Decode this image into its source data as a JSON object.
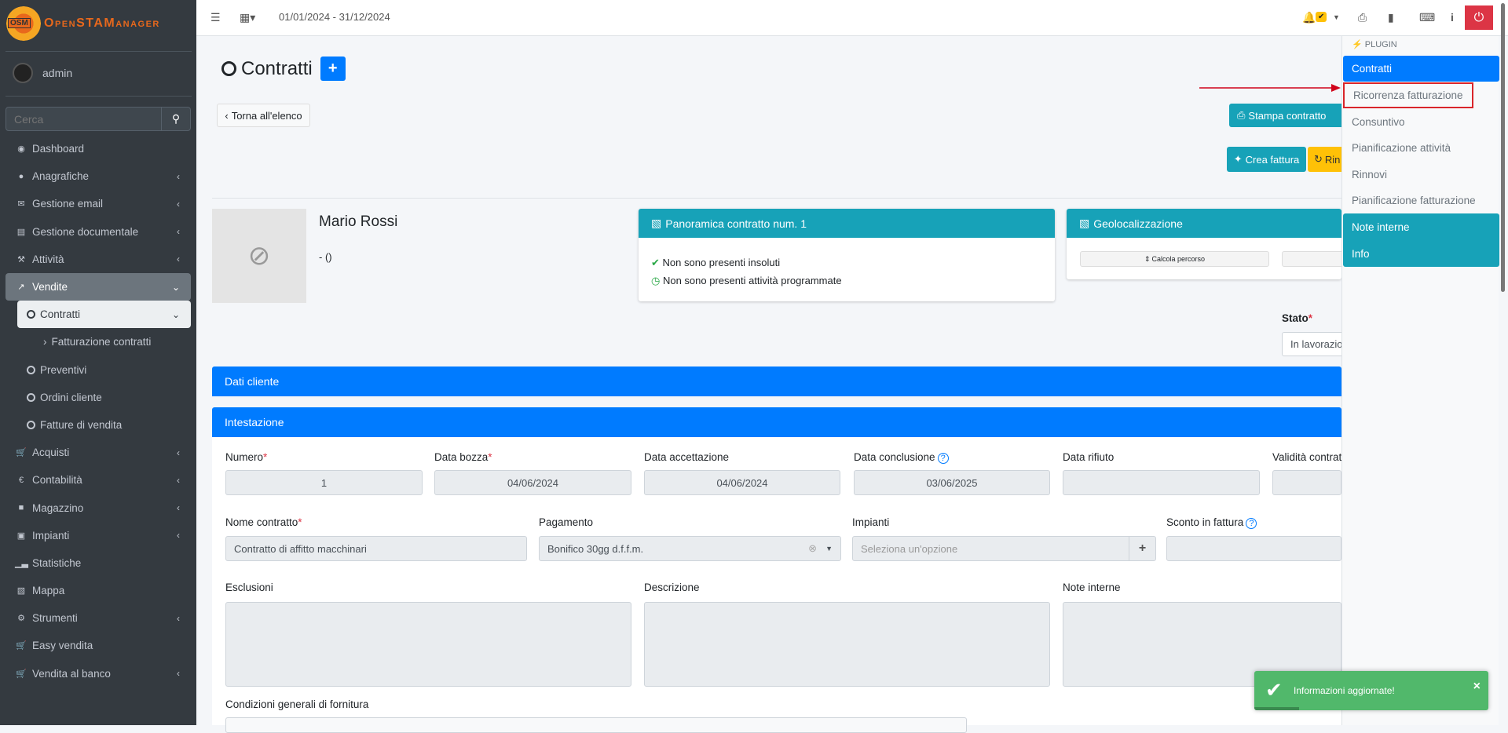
{
  "brand": {
    "logo_text": "OpenSTAManager",
    "logo_badge": "OSM"
  },
  "user": {
    "name": "admin"
  },
  "search": {
    "placeholder": "Cerca"
  },
  "sidebar": {
    "items": [
      {
        "label": "Dashboard",
        "icon": "dashboard-icon"
      },
      {
        "label": "Anagrafiche",
        "icon": "users-icon"
      },
      {
        "label": "Gestione email",
        "icon": "envelope-icon"
      },
      {
        "label": "Gestione documentale",
        "icon": "file-icon"
      },
      {
        "label": "Attività",
        "icon": "wrench-icon"
      },
      {
        "label": "Vendite",
        "icon": "line-chart-icon"
      },
      {
        "label": "Contratti"
      },
      {
        "label": "Fatturazione contratti"
      },
      {
        "label": "Preventivi"
      },
      {
        "label": "Ordini cliente"
      },
      {
        "label": "Fatture di vendita"
      },
      {
        "label": "Acquisti",
        "icon": "cart-icon"
      },
      {
        "label": "Contabilità",
        "icon": "euro-icon"
      },
      {
        "label": "Magazzino",
        "icon": "truck-icon"
      },
      {
        "label": "Impianti",
        "icon": "sitemap-icon"
      },
      {
        "label": "Statistiche",
        "icon": "bar-chart-icon"
      },
      {
        "label": "Mappa",
        "icon": "map-icon"
      },
      {
        "label": "Strumenti",
        "icon": "cog-icon"
      },
      {
        "label": "Easy vendita",
        "icon": "cart-icon"
      },
      {
        "label": "Vendita al banco",
        "icon": "cart-icon"
      }
    ]
  },
  "topbar": {
    "date_range": "01/01/2024 - 31/12/2024"
  },
  "page": {
    "title": "Contratti",
    "back_label": "Torna all'elenco",
    "print_label": "Stampa contratto",
    "invoice_label": "Crea fattura",
    "renew_label": "Rin"
  },
  "customer": {
    "name": "Mario Rossi",
    "subtitle": "- ()"
  },
  "overview": {
    "title": "Panoramica contratto num. 1",
    "lines": [
      "Non sono presenti insoluti",
      "Non sono presenti attività programmate"
    ]
  },
  "geo": {
    "title": "Geolocalizzazione",
    "route_label": "Calcola percorso"
  },
  "status": {
    "label": "Stato",
    "value": "In lavorazione"
  },
  "sections": {
    "customer_data": "Dati cliente",
    "header": "Intestazione"
  },
  "form": {
    "numero": {
      "label": "Numero",
      "value": "1"
    },
    "data_bozza": {
      "label": "Data bozza",
      "value": "04/06/2024"
    },
    "data_accettazione": {
      "label": "Data accettazione",
      "value": "04/06/2024"
    },
    "data_conclusione": {
      "label": "Data conclusione",
      "value": "03/06/2025"
    },
    "data_rifiuto": {
      "label": "Data rifiuto",
      "value": ""
    },
    "validita": {
      "label": "Validità contratto",
      "value": ""
    },
    "nome": {
      "label": "Nome contratto",
      "value": "Contratto di affitto macchinari"
    },
    "pagamento": {
      "label": "Pagamento",
      "value": "Bonifico 30gg d.f.f.m."
    },
    "impianti": {
      "label": "Impianti",
      "placeholder": "Seleziona un'opzione"
    },
    "sconto": {
      "label": "Sconto in fattura",
      "value": ""
    },
    "esclusioni": {
      "label": "Esclusioni"
    },
    "descrizione": {
      "label": "Descrizione"
    },
    "note": {
      "label": "Note interne"
    },
    "condizioni": {
      "label": "Condizioni generali di fornitura"
    }
  },
  "plugin_panel": {
    "header": "PLUGIN",
    "items": [
      "Contratti",
      "Ricorrenza fatturazione",
      "Consuntivo",
      "Pianificazione attività",
      "Rinnovi",
      "Pianificazione fatturazione",
      "Note interne",
      "Info"
    ],
    "active": "Contratti",
    "highlighted": "Ricorrenza fatturazione"
  },
  "toast": {
    "message": "Informazioni aggiornate!",
    "progress_percent": 19
  },
  "colors": {
    "primary": "#007bff",
    "info": "#17a2b8",
    "warning": "#ffc107",
    "danger": "#dc3545",
    "success": "#51b86b",
    "sidebar": "#343a40"
  }
}
